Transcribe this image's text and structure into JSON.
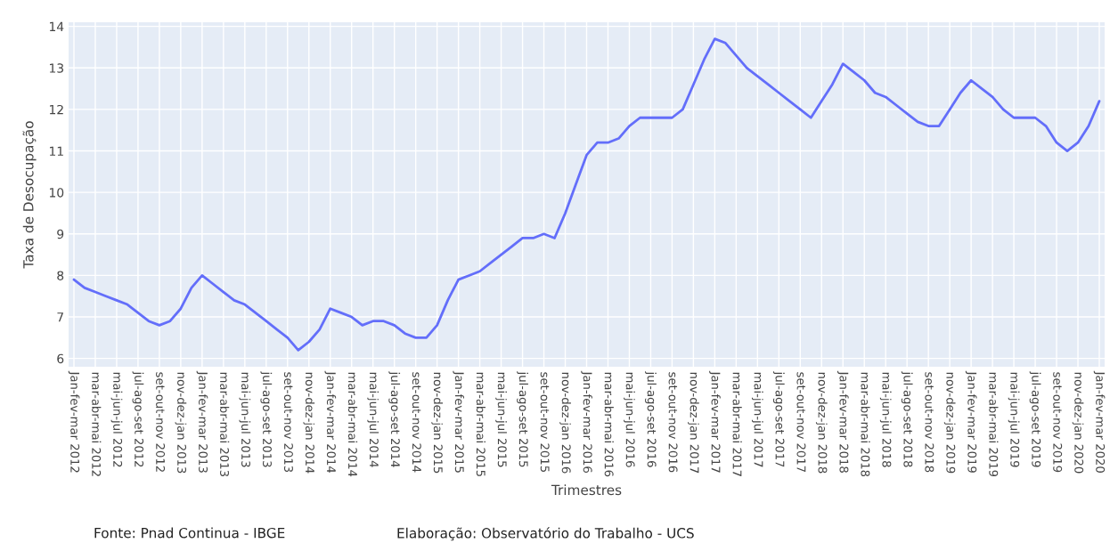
{
  "chart_data": {
    "type": "line",
    "xlabel": "Trimestres",
    "ylabel": "Taxa de Desocupação",
    "annotations": [
      "Fonte: Pnad Continua - IBGE",
      "Elaboração: Observatório do Trabalho - UCS"
    ],
    "categories": [
      "Jan-fev-mar 2012",
      null,
      "mar-abr-mai 2012",
      null,
      "mai-jun-jul 2012",
      null,
      "jul-ago-set 2012",
      null,
      "set-out-nov 2012",
      null,
      "nov-dez-jan 2013",
      null,
      "Jan-fev-mar 2013",
      null,
      "mar-abr-mai 2013",
      null,
      "mai-jun-jul 2013",
      null,
      "jul-ago-set 2013",
      null,
      "set-out-nov 2013",
      null,
      "nov-dez-jan 2014",
      null,
      "Jan-fev-mar 2014",
      null,
      "mar-abr-mai 2014",
      null,
      "mai-jun-jul 2014",
      null,
      "jul-ago-set 2014",
      null,
      "set-out-nov 2014",
      null,
      "nov-dez-jan 2015",
      null,
      "Jan-fev-mar 2015",
      null,
      "mar-abr-mai 2015",
      null,
      "mai-jun-jul 2015",
      null,
      "jul-ago-set 2015",
      null,
      "set-out-nov 2015",
      null,
      "nov-dez-jan 2016",
      null,
      "Jan-fev-mar 2016",
      null,
      "mar-abr-mai 2016",
      null,
      "mai-jun-jul 2016",
      null,
      "jul-ago-set 2016",
      null,
      "set-out-nov 2016",
      null,
      "nov-dez-jan 2017",
      null,
      "Jan-fev-mar 2017",
      null,
      "mar-abr-mai 2017",
      null,
      "mai-jun-jul 2017",
      null,
      "jul-ago-set 2017",
      null,
      "set-out-nov 2017",
      null,
      "nov-dez-jan 2018",
      null,
      "Jan-fev-mar 2018",
      null,
      "mar-abr-mai 2018",
      null,
      "mai-jun-jul 2018",
      null,
      "jul-ago-set 2018",
      null,
      "set-out-nov 2018",
      null,
      "nov-dez-jan 2019",
      null,
      "Jan-fev-mar 2019",
      null,
      "mar-abr-mai 2019",
      null,
      "mai-jun-jul 2019",
      null,
      "jul-ago-set 2019",
      null,
      "set-out-nov 2019",
      null,
      "nov-dez-jan 2020",
      null,
      "Jan-fev-mar 2020"
    ],
    "series": [
      {
        "color": "#636efa",
        "values": [
          7.9,
          7.7,
          7.6,
          7.5,
          7.4,
          7.3,
          7.1,
          6.9,
          6.8,
          6.9,
          7.2,
          7.7,
          8.0,
          7.8,
          7.6,
          7.4,
          7.3,
          7.1,
          6.9,
          6.7,
          6.5,
          6.2,
          6.4,
          6.7,
          7.2,
          7.1,
          7.0,
          6.8,
          6.9,
          6.9,
          6.8,
          6.6,
          6.5,
          6.5,
          6.8,
          7.4,
          7.9,
          8.0,
          8.1,
          8.3,
          8.5,
          8.7,
          8.9,
          8.9,
          9.0,
          8.9,
          9.5,
          10.2,
          10.9,
          11.2,
          11.2,
          11.3,
          11.6,
          11.8,
          11.8,
          11.8,
          11.8,
          12.0,
          12.6,
          13.2,
          13.7,
          13.6,
          13.3,
          13.0,
          12.8,
          12.6,
          12.4,
          12.2,
          12.0,
          11.8,
          12.2,
          12.6,
          13.1,
          12.9,
          12.7,
          12.4,
          12.3,
          12.1,
          11.9,
          11.7,
          11.6,
          11.6,
          12.0,
          12.4,
          12.7,
          12.5,
          12.3,
          12.0,
          11.8,
          11.8,
          11.8,
          11.6,
          11.2,
          11.0,
          11.2,
          11.6,
          12.2
        ]
      }
    ],
    "ylim": [
      5.8,
      14.1
    ],
    "yticks": [
      6,
      7,
      8,
      9,
      10,
      11,
      12,
      13,
      14
    ],
    "grid": true,
    "marker": "none",
    "line_style": "solid"
  }
}
